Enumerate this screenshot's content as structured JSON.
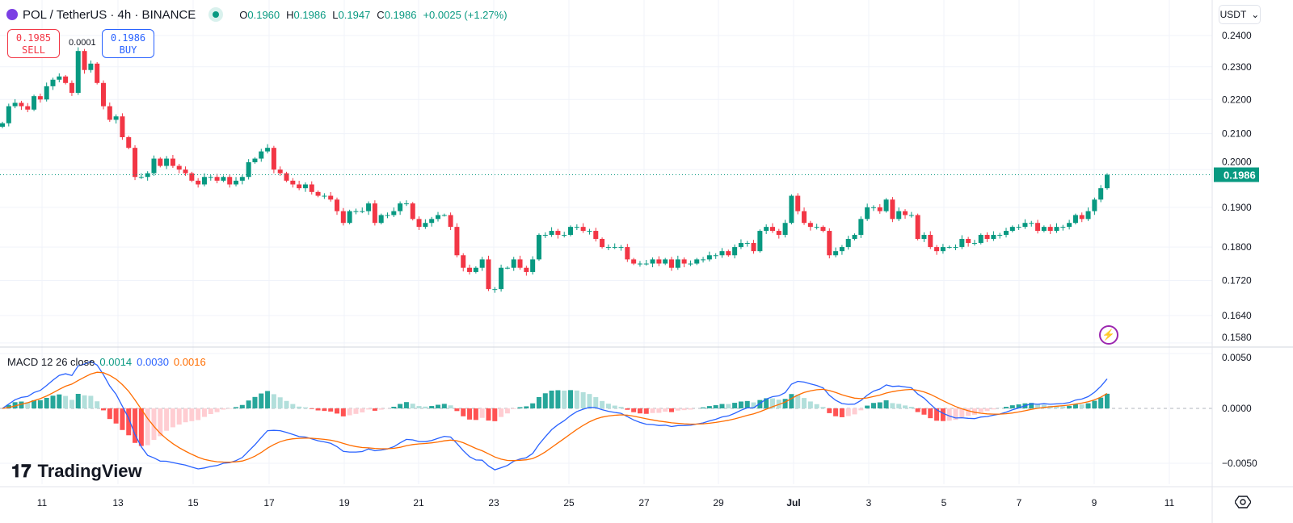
{
  "header": {
    "symbol": "POL / TetherUS · 4h · BINANCE",
    "o_label": "O",
    "o": "0.1960",
    "h_label": "H",
    "h": "0.1986",
    "l_label": "L",
    "l": "0.1947",
    "c_label": "C",
    "c": "0.1986",
    "change": "+0.0025 (+1.27%)"
  },
  "trade": {
    "sell_price": "0.1985",
    "sell_label": "SELL",
    "buy_price": "0.1986",
    "buy_label": "BUY",
    "spread": "0.0001"
  },
  "currency": "USDT",
  "macd": {
    "label": "MACD 12 26 close",
    "hist": "0.0014",
    "macd": "0.0030",
    "signal": "0.0016"
  },
  "branding": "TradingView",
  "colors": {
    "up": "#089981",
    "down": "#f23645",
    "macd": "#2962ff",
    "signal": "#ff6d00",
    "hist_up": "#26a69a",
    "hist_up_light": "#b2dfdb",
    "hist_down": "#ff5252",
    "hist_down_light": "#ffcdd2"
  },
  "chart_data": {
    "type": "candlestick",
    "interval": "4h",
    "price_axis": {
      "scale": "log",
      "ticks": [
        "0.2400",
        "0.2300",
        "0.2200",
        "0.2100",
        "0.2000",
        "0.1900",
        "0.1800",
        "0.1720",
        "0.1640",
        "0.1580"
      ],
      "range": [
        0.158,
        0.24
      ],
      "last_price": "0.1986"
    },
    "macd_axis": {
      "ticks": [
        "0.0050",
        "0.0000",
        "−0.0050"
      ],
      "range": [
        -0.0075,
        0.0055
      ]
    },
    "time_ticks": [
      "11",
      "13",
      "15",
      "17",
      "19",
      "21",
      "23",
      "25",
      "27",
      "29",
      "Jul",
      "3",
      "5",
      "7",
      "9",
      "11"
    ],
    "open_first": 0.212,
    "close": [
      0.213,
      0.218,
      0.219,
      0.218,
      0.217,
      0.221,
      0.22,
      0.224,
      0.226,
      0.227,
      0.225,
      0.222,
      0.235,
      0.229,
      0.231,
      0.225,
      0.218,
      0.214,
      0.215,
      0.209,
      0.206,
      0.198,
      0.198,
      0.199,
      0.203,
      0.201,
      0.203,
      0.201,
      0.2,
      0.199,
      0.197,
      0.196,
      0.198,
      0.198,
      0.197,
      0.198,
      0.196,
      0.197,
      0.198,
      0.202,
      0.203,
      0.205,
      0.206,
      0.2,
      0.199,
      0.197,
      0.196,
      0.195,
      0.196,
      0.194,
      0.193,
      0.193,
      0.192,
      0.189,
      0.186,
      0.189,
      0.189,
      0.189,
      0.191,
      0.186,
      0.188,
      0.188,
      0.189,
      0.191,
      0.191,
      0.187,
      0.185,
      0.186,
      0.187,
      0.188,
      0.188,
      0.185,
      0.178,
      0.175,
      0.174,
      0.175,
      0.177,
      0.17,
      0.17,
      0.175,
      0.175,
      0.177,
      0.175,
      0.174,
      0.177,
      0.183,
      0.183,
      0.184,
      0.183,
      0.183,
      0.185,
      0.185,
      0.184,
      0.184,
      0.182,
      0.18,
      0.18,
      0.18,
      0.18,
      0.177,
      0.176,
      0.176,
      0.176,
      0.177,
      0.176,
      0.177,
      0.175,
      0.177,
      0.176,
      0.176,
      0.177,
      0.177,
      0.178,
      0.178,
      0.179,
      0.178,
      0.18,
      0.181,
      0.181,
      0.179,
      0.184,
      0.185,
      0.184,
      0.183,
      0.186,
      0.193,
      0.189,
      0.186,
      0.185,
      0.185,
      0.184,
      0.178,
      0.179,
      0.18,
      0.182,
      0.183,
      0.187,
      0.19,
      0.19,
      0.189,
      0.192,
      0.187,
      0.189,
      0.188,
      0.188,
      0.182,
      0.183,
      0.18,
      0.179,
      0.18,
      0.18,
      0.18,
      0.182,
      0.181,
      0.181,
      0.183,
      0.182,
      0.183,
      0.183,
      0.184,
      0.185,
      0.185,
      0.186,
      0.186,
      0.184,
      0.185,
      0.184,
      0.185,
      0.185,
      0.186,
      0.188,
      0.187,
      0.189,
      0.192,
      0.195,
      0.1986
    ]
  }
}
